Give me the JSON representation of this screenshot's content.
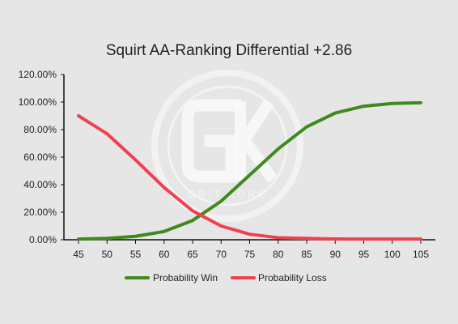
{
  "chart_data": {
    "type": "line",
    "title": "Squirt AA-Ranking Differential +2.86",
    "x": [
      45,
      50,
      55,
      60,
      65,
      70,
      75,
      80,
      85,
      90,
      95,
      100,
      105
    ],
    "series": [
      {
        "name": "Probability Win",
        "values": [
          0.5,
          1,
          2.5,
          6,
          14,
          28,
          47,
          66,
          82,
          92,
          97,
          99,
          99.5
        ],
        "color": "#3f8a1f"
      },
      {
        "name": "Probability Loss",
        "values": [
          90,
          77,
          58,
          38,
          21,
          10,
          4,
          1.5,
          1,
          0.6,
          0.5,
          0.5,
          0.5
        ],
        "color": "#f0414f"
      }
    ],
    "ylim": [
      0,
      120
    ],
    "y_ticks": [
      0,
      20,
      40,
      60,
      80,
      100,
      120
    ],
    "y_tick_labels": [
      "0.00%",
      "20.00%",
      "40.00%",
      "60.00%",
      "80.00%",
      "100.00%",
      "120.00%"
    ],
    "x_tick_labels": [
      "45",
      "50",
      "55",
      "60",
      "65",
      "70",
      "75",
      "80",
      "85",
      "90",
      "95",
      "100",
      "105"
    ],
    "grid": false,
    "legend_position": "bottom"
  },
  "watermark": {
    "text": "GRIT KORE",
    "logo_letters": "GK"
  }
}
